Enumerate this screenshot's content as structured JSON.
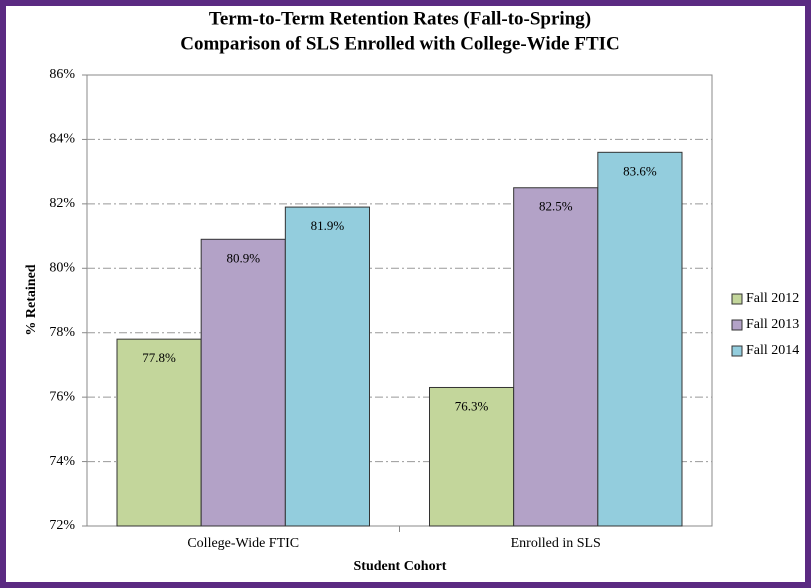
{
  "chart_data": {
    "type": "bar",
    "title": "Term-to-Term Retention Rates (Fall-to-Spring)",
    "subtitle": "Comparison of SLS Enrolled with College-Wide FTIC",
    "x_label": "Student Cohort",
    "y_label": "% Retained",
    "categories": [
      "College-Wide FTIC",
      "Enrolled in SLS"
    ],
    "series": [
      {
        "name": "Fall 2012",
        "color": "#c3d69b",
        "values": [
          77.8,
          76.3
        ],
        "value_labels": [
          "77.8%",
          "76.3%"
        ]
      },
      {
        "name": "Fall 2013",
        "color": "#b3a2c7",
        "values": [
          80.9,
          82.5
        ],
        "value_labels": [
          "80.9%",
          "82.5%"
        ]
      },
      {
        "name": "Fall 2014",
        "color": "#93cddd",
        "values": [
          81.9,
          83.6
        ],
        "value_labels": [
          "81.9%",
          "83.6%"
        ]
      }
    ],
    "ylim": [
      72,
      86
    ],
    "yticks": [
      {
        "value": 72,
        "label": "72%"
      },
      {
        "value": 74,
        "label": "74%"
      },
      {
        "value": 76,
        "label": "76%"
      },
      {
        "value": 78,
        "label": "78%"
      },
      {
        "value": 80,
        "label": "80%"
      },
      {
        "value": 82,
        "label": "82%"
      },
      {
        "value": 84,
        "label": "84%"
      },
      {
        "value": 86,
        "label": "86%"
      }
    ],
    "grid": true,
    "legend": "right"
  }
}
